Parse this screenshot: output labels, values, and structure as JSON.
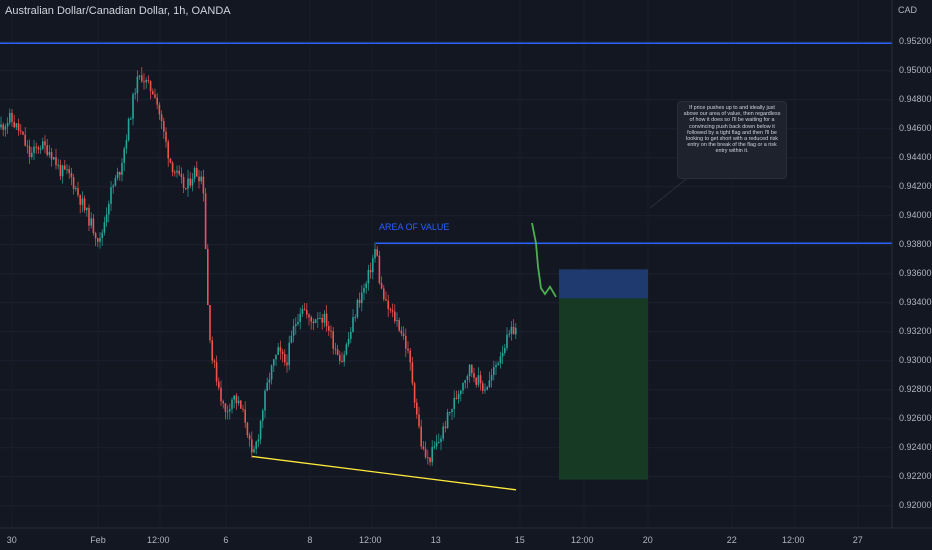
{
  "header": {
    "title": "Australian Dollar/Canadian Dollar, 1h, OANDA",
    "currency": "CAD"
  },
  "price_axis": {
    "labels": [
      "0.95200",
      "0.95000",
      "0.94800",
      "0.94600",
      "0.94400",
      "0.94200",
      "0.94000",
      "0.93800",
      "0.93600",
      "0.93400",
      "0.93200",
      "0.93000",
      "0.92800",
      "0.92600",
      "0.92400",
      "0.92200",
      "0.92000"
    ]
  },
  "time_axis": {
    "labels": [
      "30",
      "Feb",
      "12:00",
      "6",
      "8",
      "12:00",
      "13",
      "15",
      "12:00",
      "20",
      "22",
      "12:00",
      "27"
    ]
  },
  "annotations": {
    "area_of_value": "AREA OF VALUE",
    "note": "If price pushes up to and ideally just above our area of value, then regardless of how it does so I'll be waiting for a convincing push back down below it followed by a tight flag and then I'll be looking to get short with a reduced risk entry on the break of the flag or a risk entry within it."
  },
  "colors": {
    "background": "#131722",
    "candle_up": "#26a69a",
    "candle_down": "#ef5350",
    "horizontal_line": "#2962ff",
    "trendline": "#ffeb3b",
    "stop_zone": "#1e3a6e",
    "target_zone": "#163a24",
    "projection": "#4caf50"
  },
  "chart_data": {
    "type": "candlestick",
    "symbol": "AUDCAD",
    "timeframe": "1h",
    "ylim": [
      0.9195,
      0.9535
    ],
    "resistance_level": 0.9381,
    "upper_line_level": 0.9519,
    "price_path": [
      [
        0,
        0.9461
      ],
      [
        10,
        0.9467
      ],
      [
        20,
        0.9458
      ],
      [
        30,
        0.9441
      ],
      [
        40,
        0.9449
      ],
      [
        50,
        0.9445
      ],
      [
        60,
        0.9431
      ],
      [
        70,
        0.9428
      ],
      [
        80,
        0.9412
      ],
      [
        90,
        0.9396
      ],
      [
        100,
        0.9382
      ],
      [
        110,
        0.9415
      ],
      [
        120,
        0.9432
      ],
      [
        130,
        0.9468
      ],
      [
        136,
        0.9491
      ],
      [
        142,
        0.9497
      ],
      [
        148,
        0.9489
      ],
      [
        155,
        0.9485
      ],
      [
        162,
        0.9462
      ],
      [
        170,
        0.9438
      ],
      [
        178,
        0.9426
      ],
      [
        186,
        0.9418
      ],
      [
        194,
        0.9431
      ],
      [
        203,
        0.9426
      ],
      [
        208,
        0.9335
      ],
      [
        212,
        0.9302
      ],
      [
        218,
        0.9285
      ],
      [
        225,
        0.9263
      ],
      [
        233,
        0.9276
      ],
      [
        240,
        0.9268
      ],
      [
        246,
        0.9258
      ],
      [
        252,
        0.9232
      ],
      [
        258,
        0.9248
      ],
      [
        264,
        0.9272
      ],
      [
        270,
        0.9291
      ],
      [
        278,
        0.9306
      ],
      [
        286,
        0.9298
      ],
      [
        294,
        0.9323
      ],
      [
        302,
        0.9339
      ],
      [
        310,
        0.9326
      ],
      [
        318,
        0.9332
      ],
      [
        326,
        0.9328
      ],
      [
        334,
        0.9311
      ],
      [
        342,
        0.9301
      ],
      [
        350,
        0.9318
      ],
      [
        358,
        0.9341
      ],
      [
        366,
        0.9352
      ],
      [
        372,
        0.9368
      ],
      [
        376,
        0.9379
      ],
      [
        380,
        0.9352
      ],
      [
        386,
        0.9338
      ],
      [
        392,
        0.9332
      ],
      [
        398,
        0.9326
      ],
      [
        404,
        0.9316
      ],
      [
        410,
        0.9298
      ],
      [
        416,
        0.9268
      ],
      [
        422,
        0.9239
      ],
      [
        428,
        0.9231
      ],
      [
        434,
        0.9239
      ],
      [
        440,
        0.9246
      ],
      [
        446,
        0.9258
      ],
      [
        452,
        0.9268
      ],
      [
        458,
        0.9278
      ],
      [
        464,
        0.9288
      ],
      [
        470,
        0.9295
      ],
      [
        476,
        0.9288
      ],
      [
        484,
        0.9281
      ],
      [
        490,
        0.9286
      ],
      [
        496,
        0.9297
      ],
      [
        502,
        0.9308
      ],
      [
        508,
        0.9315
      ],
      [
        514,
        0.9322
      ]
    ],
    "projection": [
      [
        532,
        0.9395
      ],
      [
        536,
        0.9381
      ],
      [
        538,
        0.9365
      ],
      [
        541,
        0.935
      ],
      [
        545,
        0.9346
      ],
      [
        550,
        0.9351
      ],
      [
        556,
        0.9344
      ]
    ],
    "trendline": [
      [
        252,
        0.9234
      ],
      [
        516,
        0.9211
      ]
    ],
    "position_tool": {
      "entry": 0.9343,
      "stop": 0.9363,
      "target": 0.9218,
      "time_range": [
        559,
        648
      ]
    }
  }
}
